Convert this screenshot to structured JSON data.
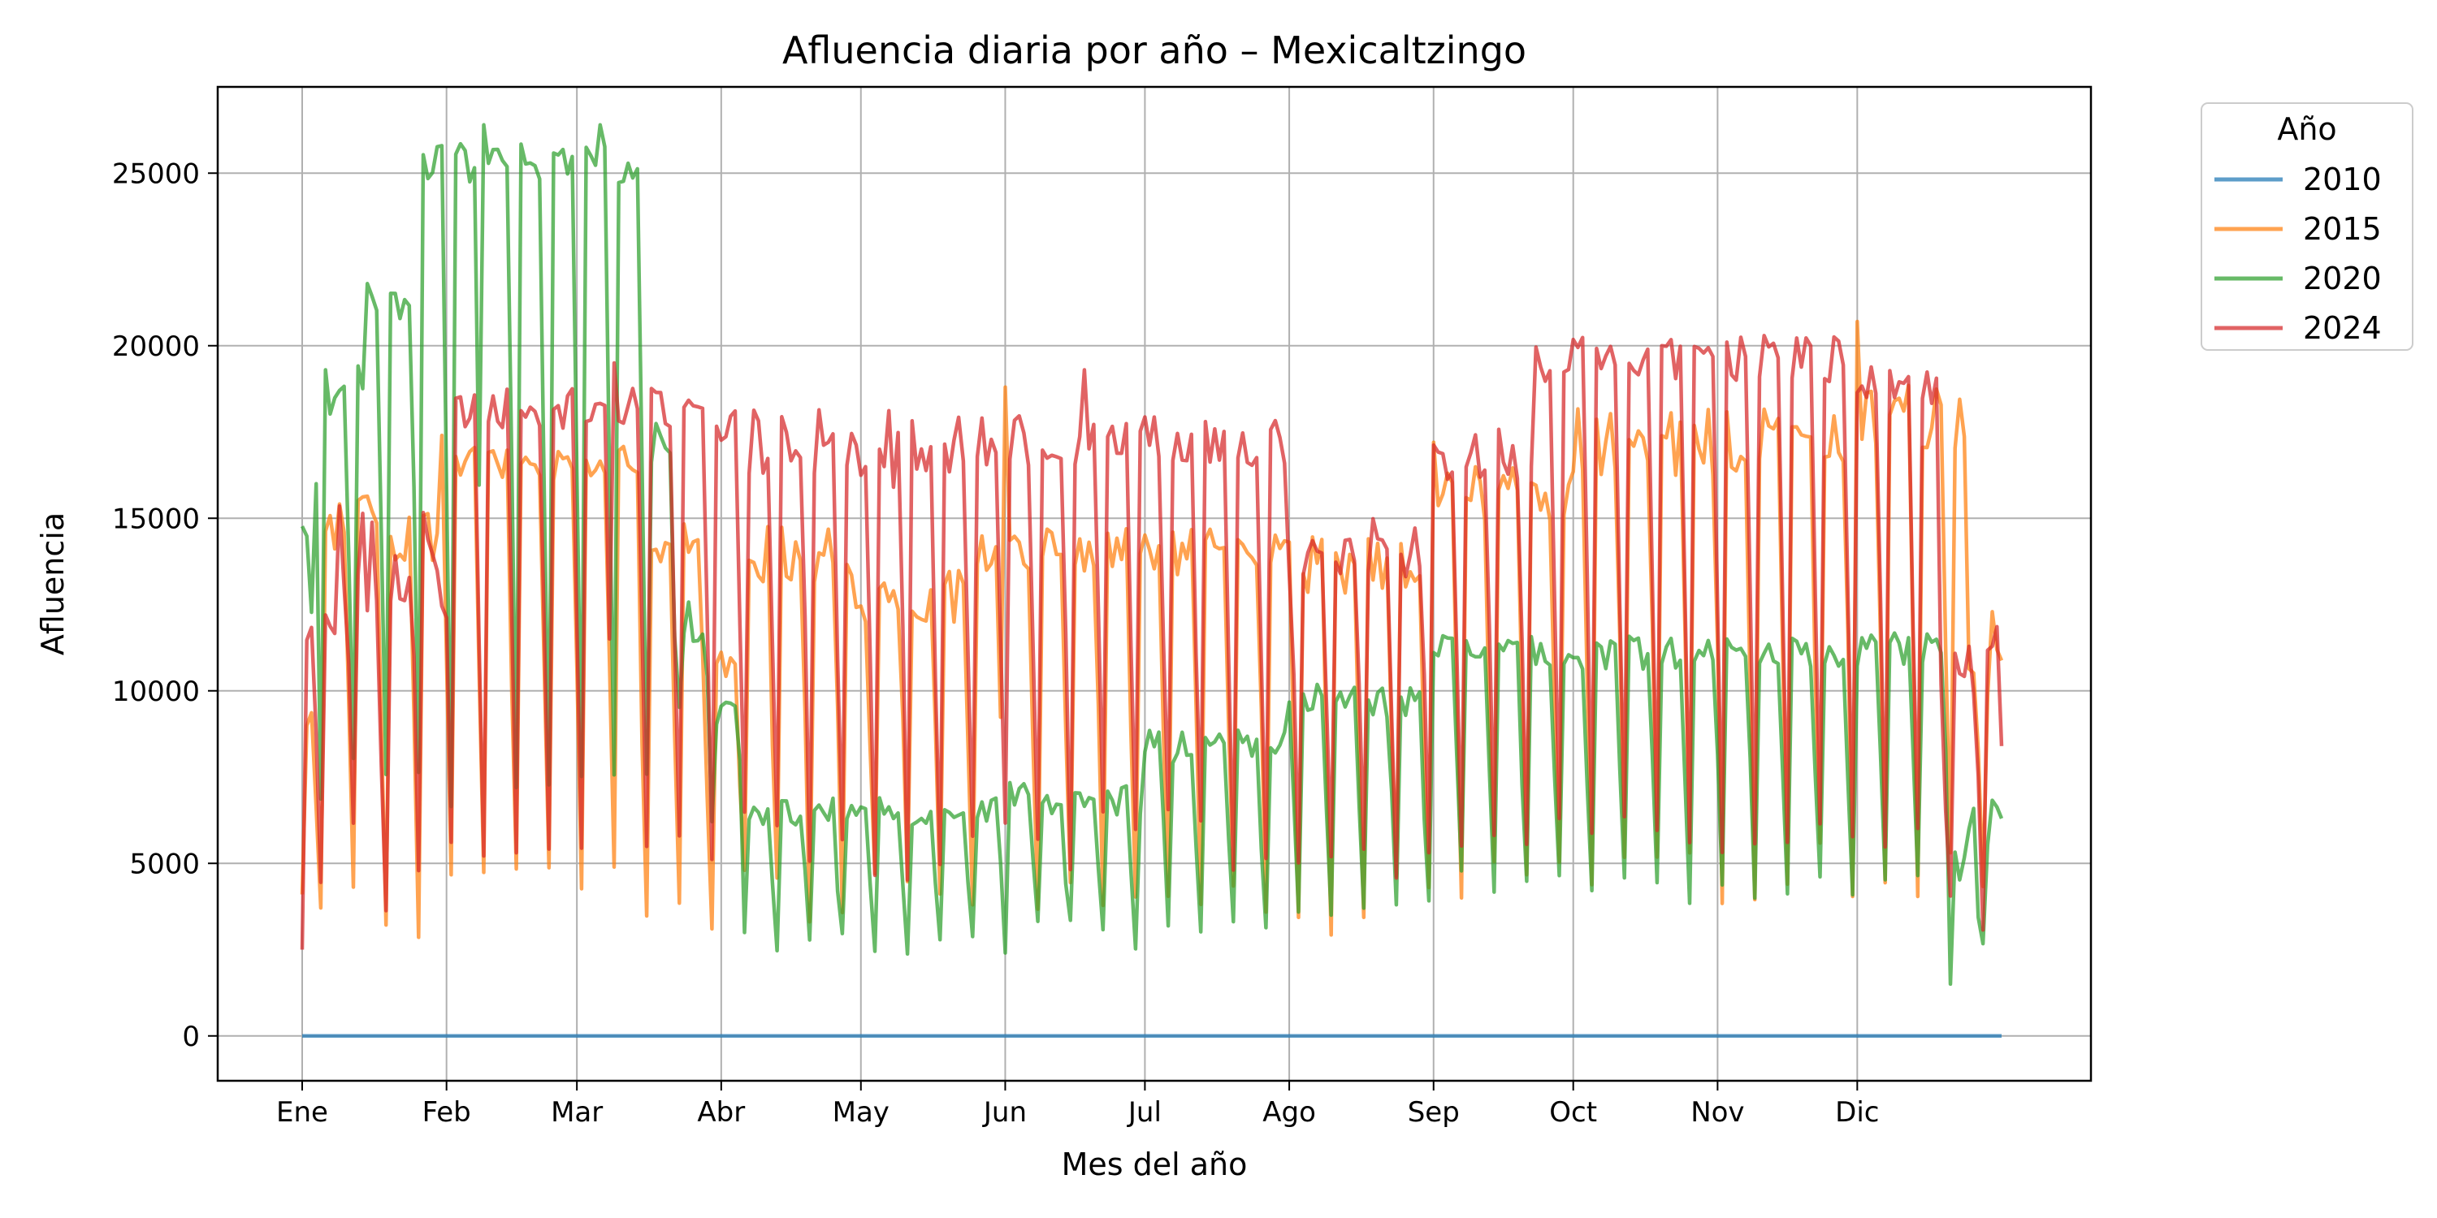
{
  "chart_data": {
    "type": "line",
    "title": "Afluencia diaria por año – Mexicaltzingo",
    "xlabel": "Mes del año",
    "ylabel": "Afluencia",
    "x_domain": [
      1,
      366
    ],
    "ylim": [
      -1300,
      27500
    ],
    "grid": true,
    "legend": {
      "title": "Año",
      "placement": "outside-top-right"
    },
    "x_ticks": [
      {
        "label": "Ene",
        "day": 1
      },
      {
        "label": "Feb",
        "day": 32
      },
      {
        "label": "Mar",
        "day": 60
      },
      {
        "label": "Abr",
        "day": 91
      },
      {
        "label": "May",
        "day": 121
      },
      {
        "label": "Jun",
        "day": 152
      },
      {
        "label": "Jul",
        "day": 182
      },
      {
        "label": "Ago",
        "day": 213
      },
      {
        "label": "Sep",
        "day": 244
      },
      {
        "label": "Oct",
        "day": 274
      },
      {
        "label": "Nov",
        "day": 305
      },
      {
        "label": "Dic",
        "day": 335
      }
    ],
    "y_ticks": [
      0,
      5000,
      10000,
      15000,
      20000,
      25000
    ],
    "series": [
      {
        "name": "2010",
        "color": "#1f77b4",
        "segments": [
          {
            "from": 1,
            "to": 366,
            "weekday": 0,
            "weekend": 0,
            "noise": 0
          }
        ],
        "anchors": [
          {
            "day": 1,
            "value": 0
          }
        ]
      },
      {
        "name": "2015",
        "color": "#ff7f0e",
        "segments": [
          {
            "from": 1,
            "to": 4,
            "weekday": 9000,
            "weekend": 4300,
            "noise": 400
          },
          {
            "from": 5,
            "to": 31,
            "weekday": 14800,
            "weekend": 3600,
            "noise": 1100
          },
          {
            "from": 32,
            "to": 73,
            "weekday": 16600,
            "weekend": 4600,
            "noise": 500
          },
          {
            "from": 74,
            "to": 86,
            "weekday": 14300,
            "weekend": 3800,
            "noise": 600
          },
          {
            "from": 87,
            "to": 95,
            "weekday": 10800,
            "weekend": 3300,
            "noise": 400
          },
          {
            "from": 96,
            "to": 118,
            "weekday": 14000,
            "weekend": 3900,
            "noise": 900
          },
          {
            "from": 119,
            "to": 145,
            "weekday": 12800,
            "weekend": 4600,
            "noise": 900
          },
          {
            "from": 146,
            "to": 212,
            "weekday": 14000,
            "weekend": 3900,
            "noise": 700
          },
          {
            "from": 213,
            "to": 243,
            "weekday": 13600,
            "weekend": 3800,
            "noise": 900
          },
          {
            "from": 244,
            "to": 274,
            "weekday": 15800,
            "weekend": 4300,
            "noise": 900
          },
          {
            "from": 275,
            "to": 334,
            "weekday": 17200,
            "weekend": 4700,
            "noise": 1000
          },
          {
            "from": 335,
            "to": 358,
            "weekday": 18000,
            "weekend": 5000,
            "noise": 1000
          },
          {
            "from": 359,
            "to": 366,
            "weekday": 11000,
            "weekend": 3300,
            "noise": 1500
          }
        ],
        "anchors": [
          {
            "day": 1,
            "value": 4100
          },
          {
            "day": 31,
            "value": 17400
          },
          {
            "day": 152,
            "value": 18800
          },
          {
            "day": 244,
            "value": 17200
          },
          {
            "day": 335,
            "value": 20700
          }
        ]
      },
      {
        "name": "2020",
        "color": "#2ca02c",
        "segments": [
          {
            "from": 1,
            "to": 5,
            "weekday": 13500,
            "weekend": 7600,
            "noise": 1800
          },
          {
            "from": 6,
            "to": 14,
            "weekday": 19200,
            "weekend": 7200,
            "noise": 1200
          },
          {
            "from": 15,
            "to": 24,
            "weekday": 21200,
            "weekend": 7200,
            "noise": 600
          },
          {
            "from": 25,
            "to": 75,
            "weekday": 25300,
            "weekend": 7200,
            "noise": 600
          },
          {
            "from": 76,
            "to": 81,
            "weekday": 17500,
            "weekend": 7000,
            "noise": 1200
          },
          {
            "from": 82,
            "to": 88,
            "weekday": 12000,
            "weekend": 10000,
            "noise": 600
          },
          {
            "from": 89,
            "to": 95,
            "weekday": 9300,
            "weekend": 6000,
            "noise": 600
          },
          {
            "from": 96,
            "to": 150,
            "weekday": 6500,
            "weekend": 2600,
            "noise": 400
          },
          {
            "from": 151,
            "to": 181,
            "weekday": 6900,
            "weekend": 2900,
            "noise": 500
          },
          {
            "from": 182,
            "to": 212,
            "weekday": 8400,
            "weekend": 3400,
            "noise": 500
          },
          {
            "from": 213,
            "to": 243,
            "weekday": 9700,
            "weekend": 3800,
            "noise": 500
          },
          {
            "from": 244,
            "to": 334,
            "weekday": 11100,
            "weekend": 4300,
            "noise": 500
          },
          {
            "from": 335,
            "to": 354,
            "weekday": 11200,
            "weekend": 4800,
            "noise": 500
          },
          {
            "from": 355,
            "to": 366,
            "weekday": 6000,
            "weekend": 2300,
            "noise": 1500
          }
        ],
        "anchors": [
          {
            "day": 4,
            "value": 16000
          },
          {
            "day": 40,
            "value": 26400
          },
          {
            "day": 65,
            "value": 26400
          },
          {
            "day": 366,
            "value": 6300
          }
        ]
      },
      {
        "name": "2024",
        "color": "#d62728",
        "segments": [
          {
            "from": 1,
            "to": 8,
            "weekday": 12000,
            "weekend": 5000,
            "noise": 600
          },
          {
            "from": 9,
            "to": 31,
            "weekday": 14000,
            "weekend": 4500,
            "noise": 2200
          },
          {
            "from": 32,
            "to": 90,
            "weekday": 18200,
            "weekend": 5600,
            "noise": 600
          },
          {
            "from": 91,
            "to": 151,
            "weekday": 17200,
            "weekend": 5500,
            "noise": 1000
          },
          {
            "from": 152,
            "to": 212,
            "weekday": 17400,
            "weekend": 5700,
            "noise": 900
          },
          {
            "from": 213,
            "to": 243,
            "weekday": 14200,
            "weekend": 5400,
            "noise": 900
          },
          {
            "from": 244,
            "to": 265,
            "weekday": 16800,
            "weekend": 5300,
            "noise": 800
          },
          {
            "from": 266,
            "to": 334,
            "weekday": 19600,
            "weekend": 5900,
            "noise": 700
          },
          {
            "from": 335,
            "to": 352,
            "weekday": 18800,
            "weekend": 5800,
            "noise": 600
          },
          {
            "from": 353,
            "to": 366,
            "weekday": 11000,
            "weekend": 3300,
            "noise": 1200
          }
        ],
        "anchors": [
          {
            "day": 1,
            "value": 2500
          },
          {
            "day": 68,
            "value": 19500
          },
          {
            "day": 128,
            "value": 15900
          },
          {
            "day": 169,
            "value": 19300
          },
          {
            "day": 325,
            "value": 20000
          },
          {
            "day": 366,
            "value": 8400
          }
        ]
      }
    ]
  }
}
